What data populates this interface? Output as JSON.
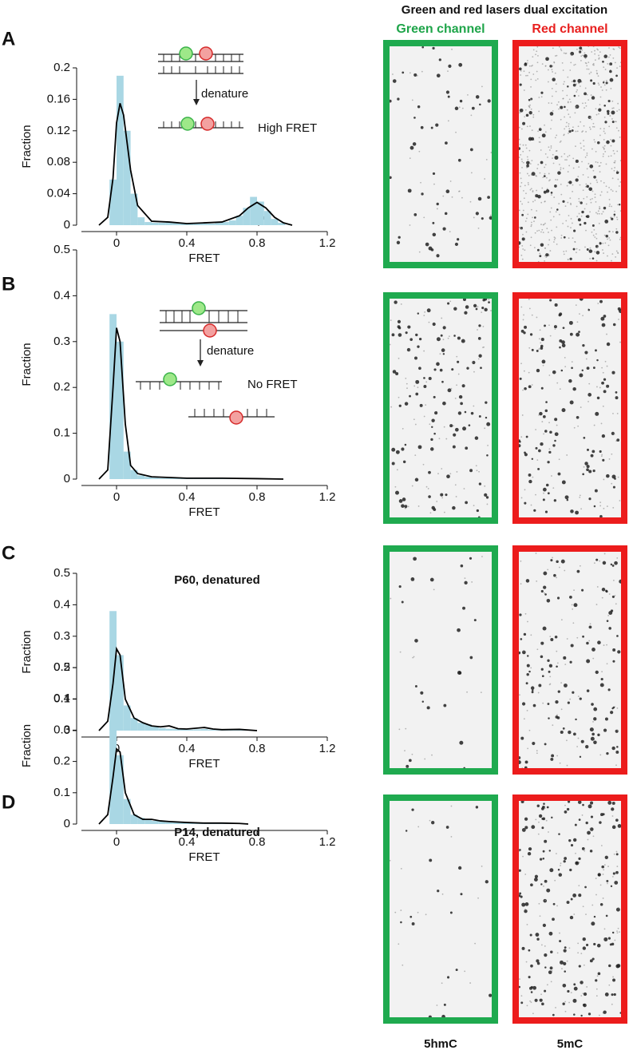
{
  "chart_data": [
    {
      "type": "histogram",
      "panel": "A",
      "xlabel": "FRET",
      "ylabel": "Fraction",
      "annotations": [
        "denature",
        "High FRET"
      ],
      "bins": [
        -0.04,
        0,
        0.04,
        0.08,
        0.12,
        0.16,
        0.2,
        0.24,
        0.28,
        0.32,
        0.36,
        0.4,
        0.44,
        0.48,
        0.52,
        0.56,
        0.6,
        0.64,
        0.68,
        0.72,
        0.76,
        0.8,
        0.84,
        0.88,
        0.92,
        0.96
      ],
      "values": [
        0.058,
        0.19,
        0.12,
        0.04,
        0.01,
        0.004,
        0.003,
        0.003,
        0.004,
        0.003,
        0.002,
        0.002,
        0.002,
        0.002,
        0.002,
        0.003,
        0.004,
        0.006,
        0.012,
        0.022,
        0.036,
        0.03,
        0.018,
        0.008,
        0.003
      ],
      "color": "#a9d7e4",
      "density": {
        "color": "#000000",
        "x": [
          -0.1,
          -0.05,
          -0.02,
          0,
          0.02,
          0.04,
          0.08,
          0.12,
          0.2,
          0.3,
          0.4,
          0.5,
          0.6,
          0.7,
          0.75,
          0.8,
          0.85,
          0.9,
          0.95,
          1.0
        ],
        "values": [
          0,
          0.01,
          0.06,
          0.13,
          0.155,
          0.14,
          0.07,
          0.025,
          0.005,
          0.004,
          0.002,
          0.003,
          0.004,
          0.012,
          0.022,
          0.029,
          0.022,
          0.01,
          0.003,
          0
        ]
      },
      "xlim": [
        -0.2,
        1.2
      ],
      "xticks": [
        0,
        0.4,
        0.8,
        1.2
      ],
      "ylim": [
        0,
        0.2
      ],
      "yticks": [
        0,
        0.04,
        0.08,
        0.12,
        0.16,
        0.2
      ]
    },
    {
      "type": "histogram",
      "panel": "B",
      "xlabel": "FRET",
      "ylabel": "Fraction",
      "annotations": [
        "denature",
        "No FRET"
      ],
      "bins": [
        -0.04,
        0,
        0.04,
        0.08,
        0.12,
        0.16,
        0.2,
        0.24,
        0.28,
        0.32,
        0.36,
        0.4,
        0.44,
        0.48,
        0.52,
        0.56,
        0.6,
        0.64,
        0.68,
        0.72,
        0.76,
        0.8,
        0.84,
        0.88,
        0.92,
        0.96
      ],
      "values": [
        0.36,
        0.3,
        0.06,
        0.02,
        0.008,
        0.005,
        0.003,
        0.002,
        0.002,
        0.002,
        0.001,
        0.001,
        0.001,
        0.001,
        0.001,
        0.001,
        0.001,
        0.001,
        0.001,
        0.001,
        0.001,
        0.001,
        0.001,
        0,
        0
      ],
      "color": "#a9d7e4",
      "density": {
        "color": "#000000",
        "x": [
          -0.1,
          -0.05,
          -0.02,
          0,
          0.02,
          0.05,
          0.08,
          0.12,
          0.2,
          0.4,
          0.6,
          0.8,
          0.95
        ],
        "values": [
          0,
          0.02,
          0.2,
          0.33,
          0.3,
          0.12,
          0.03,
          0.012,
          0.005,
          0.002,
          0.002,
          0.001,
          0
        ]
      },
      "xlim": [
        -0.2,
        1.2
      ],
      "xticks": [
        0,
        0.4,
        0.8,
        1.2
      ],
      "ylim": [
        0,
        0.5
      ],
      "yticks": [
        0,
        0.1,
        0.2,
        0.3,
        0.4,
        0.5
      ]
    },
    {
      "type": "histogram",
      "panel": "C",
      "xlabel": "FRET",
      "ylabel": "Fraction",
      "annotations": [
        "P60, denatured"
      ],
      "bins": [
        -0.04,
        0,
        0.04,
        0.08,
        0.12,
        0.16,
        0.2,
        0.24,
        0.28,
        0.32,
        0.36,
        0.4,
        0.44,
        0.48,
        0.52,
        0.56,
        0.6,
        0.64,
        0.68,
        0.72,
        0.76,
        0.8,
        0.84,
        0.88,
        0.92,
        0.96
      ],
      "values": [
        0.38,
        0.24,
        0.08,
        0.04,
        0.025,
        0.02,
        0.012,
        0.008,
        0.006,
        0.005,
        0.004,
        0.003,
        0.004,
        0.005,
        0.003,
        0.002,
        0.002,
        0.002,
        0.002,
        0.002,
        0.002,
        0,
        0,
        0,
        0
      ],
      "color": "#a9d7e4",
      "density": {
        "color": "#000000",
        "x": [
          -0.1,
          -0.05,
          -0.02,
          0,
          0.02,
          0.05,
          0.1,
          0.15,
          0.2,
          0.25,
          0.3,
          0.35,
          0.4,
          0.5,
          0.55,
          0.6,
          0.7,
          0.8
        ],
        "values": [
          0,
          0.03,
          0.15,
          0.26,
          0.24,
          0.1,
          0.04,
          0.025,
          0.015,
          0.012,
          0.015,
          0.006,
          0.005,
          0.01,
          0.005,
          0.003,
          0.004,
          0
        ]
      },
      "xlim": [
        -0.2,
        1.2
      ],
      "xticks": [
        0,
        0.4,
        0.8,
        1.2
      ],
      "ylim": [
        0,
        0.5
      ],
      "yticks": [
        0,
        0.1,
        0.2,
        0.3,
        0.4,
        0.5
      ]
    },
    {
      "type": "histogram",
      "panel": "D",
      "xlabel": "FRET",
      "ylabel": "Fraction",
      "annotations": [
        "P14, denatured"
      ],
      "bins": [
        -0.04,
        0,
        0.04,
        0.08,
        0.12,
        0.16,
        0.2,
        0.24,
        0.28,
        0.32,
        0.36,
        0.4,
        0.44,
        0.48,
        0.52,
        0.56,
        0.6,
        0.64,
        0.68,
        0.72,
        0.76,
        0.8,
        0.84,
        0.88,
        0.92,
        0.96
      ],
      "values": [
        0.33,
        0.22,
        0.08,
        0.03,
        0.02,
        0.015,
        0.01,
        0.008,
        0.006,
        0.005,
        0.004,
        0.003,
        0.002,
        0.002,
        0.002,
        0.002,
        0.002,
        0.002,
        0.001,
        0,
        0,
        0,
        0,
        0,
        0
      ],
      "color": "#a9d7e4",
      "density": {
        "color": "#000000",
        "x": [
          -0.1,
          -0.05,
          -0.02,
          0,
          0.02,
          0.05,
          0.1,
          0.15,
          0.2,
          0.25,
          0.3,
          0.4,
          0.5,
          0.6,
          0.7,
          0.75
        ],
        "values": [
          0,
          0.03,
          0.15,
          0.24,
          0.23,
          0.1,
          0.03,
          0.015,
          0.015,
          0.01,
          0.008,
          0.005,
          0.003,
          0.003,
          0.002,
          0
        ]
      },
      "xlim": [
        -0.2,
        1.2
      ],
      "xticks": [
        0,
        0.4,
        0.8,
        1.2
      ],
      "ylim": [
        0,
        0.5
      ],
      "yticks": [
        0,
        0.1,
        0.2,
        0.3,
        0.4,
        0.5
      ]
    }
  ],
  "figure": {
    "header": "Green and red lasers dual excitation",
    "channels": [
      "Green channel",
      "Red channel"
    ],
    "labels": [
      "5hmC",
      "5mC"
    ]
  }
}
